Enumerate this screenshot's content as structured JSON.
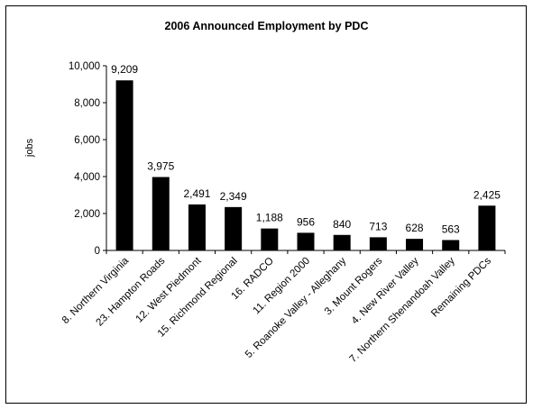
{
  "chart_data": {
    "type": "bar",
    "title": "2006 Announced Employment by PDC",
    "ylabel": "jobs",
    "xlabel": "",
    "ylim": [
      0,
      10000
    ],
    "yticks": [
      "0",
      "2,000",
      "4,000",
      "6,000",
      "8,000",
      "10,000"
    ],
    "grid": false,
    "legend": "none",
    "bar_color": "#000000",
    "categories": [
      "8. Northern Virginia",
      "23. Hampton Roads",
      "12. West Piedmont",
      "15. Richmond Regional",
      "16. RADCO",
      "11. Region 2000",
      "5. Roanoke Valley - Alleghany",
      "3. Mount Rogers",
      "4. New River Valley",
      "7. Northern Shenandoah Valley",
      "Remaining PDCs"
    ],
    "values": [
      9209,
      3975,
      2491,
      2349,
      1188,
      956,
      840,
      713,
      628,
      563,
      2425
    ],
    "data_labels": [
      "9,209",
      "3,975",
      "2,491",
      "2,349",
      "1,188",
      "956",
      "840",
      "713",
      "628",
      "563",
      "2,425"
    ]
  }
}
